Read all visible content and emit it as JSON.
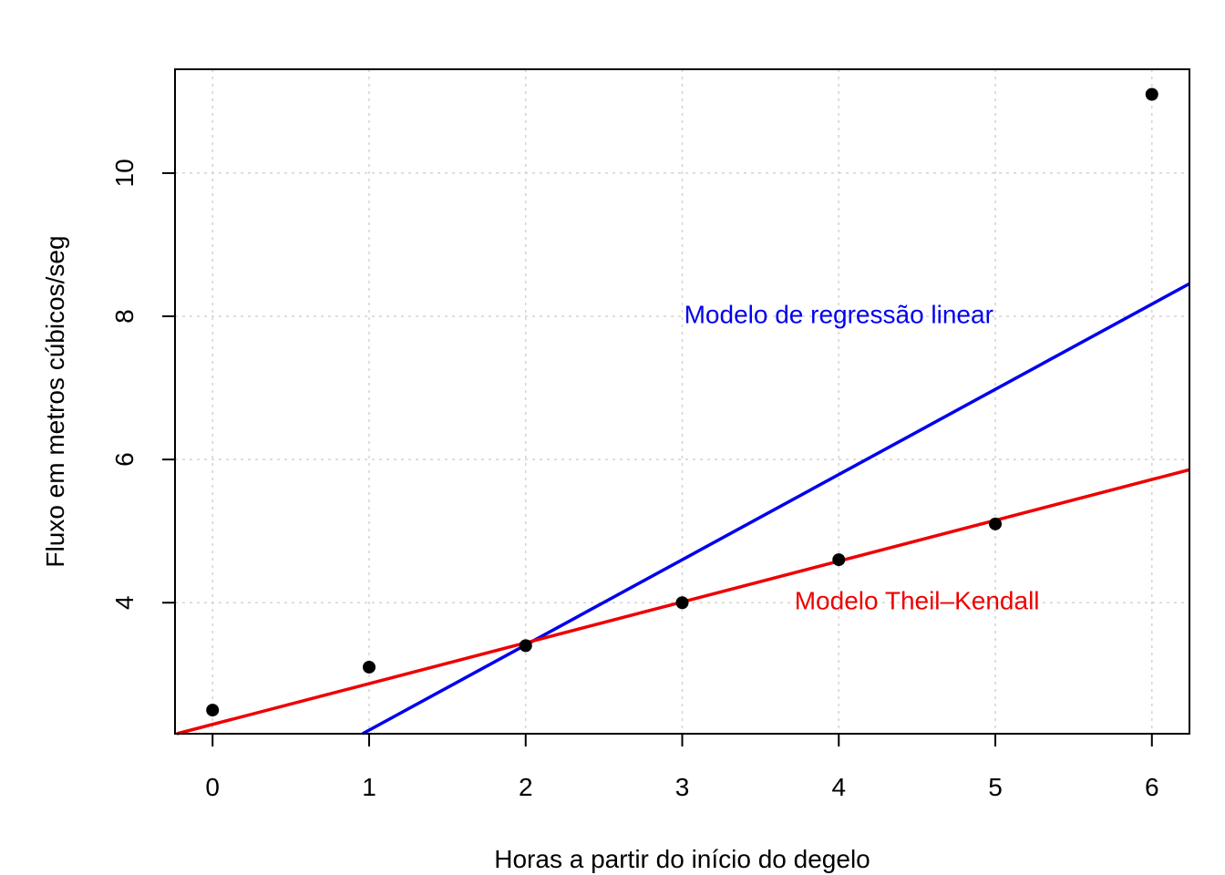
{
  "chart_data": {
    "type": "scatter",
    "title": "",
    "xlabel": "Horas a partir do início do degelo",
    "ylabel": "Fluxo em metros cúbicos/seg",
    "xlim": [
      -0.24,
      6.24
    ],
    "ylim": [
      2.17,
      11.45
    ],
    "x_ticks": [
      0,
      1,
      2,
      3,
      4,
      5,
      6
    ],
    "y_ticks": [
      4,
      6,
      8,
      10
    ],
    "grid": true,
    "points": {
      "x": [
        0,
        1,
        2,
        3,
        4,
        5,
        6
      ],
      "y": [
        2.5,
        3.1,
        3.4,
        4.0,
        4.6,
        5.1,
        11.1
      ]
    },
    "lines": [
      {
        "name": "Modelo de regressão linear",
        "color": "#0000ee",
        "intercept": 1.03,
        "slope": 1.19
      },
      {
        "name": "Modelo Theil–Kendall",
        "color": "#ee0000",
        "intercept": 2.3,
        "slope": 0.57
      }
    ],
    "annotations": [
      {
        "text": "Modelo de regressão linear",
        "x": 4.0,
        "y": 8.0,
        "color": "#0000ee"
      },
      {
        "text": "Modelo Theil–Kendall",
        "x": 4.5,
        "y": 4.0,
        "color": "#ee0000"
      }
    ]
  }
}
